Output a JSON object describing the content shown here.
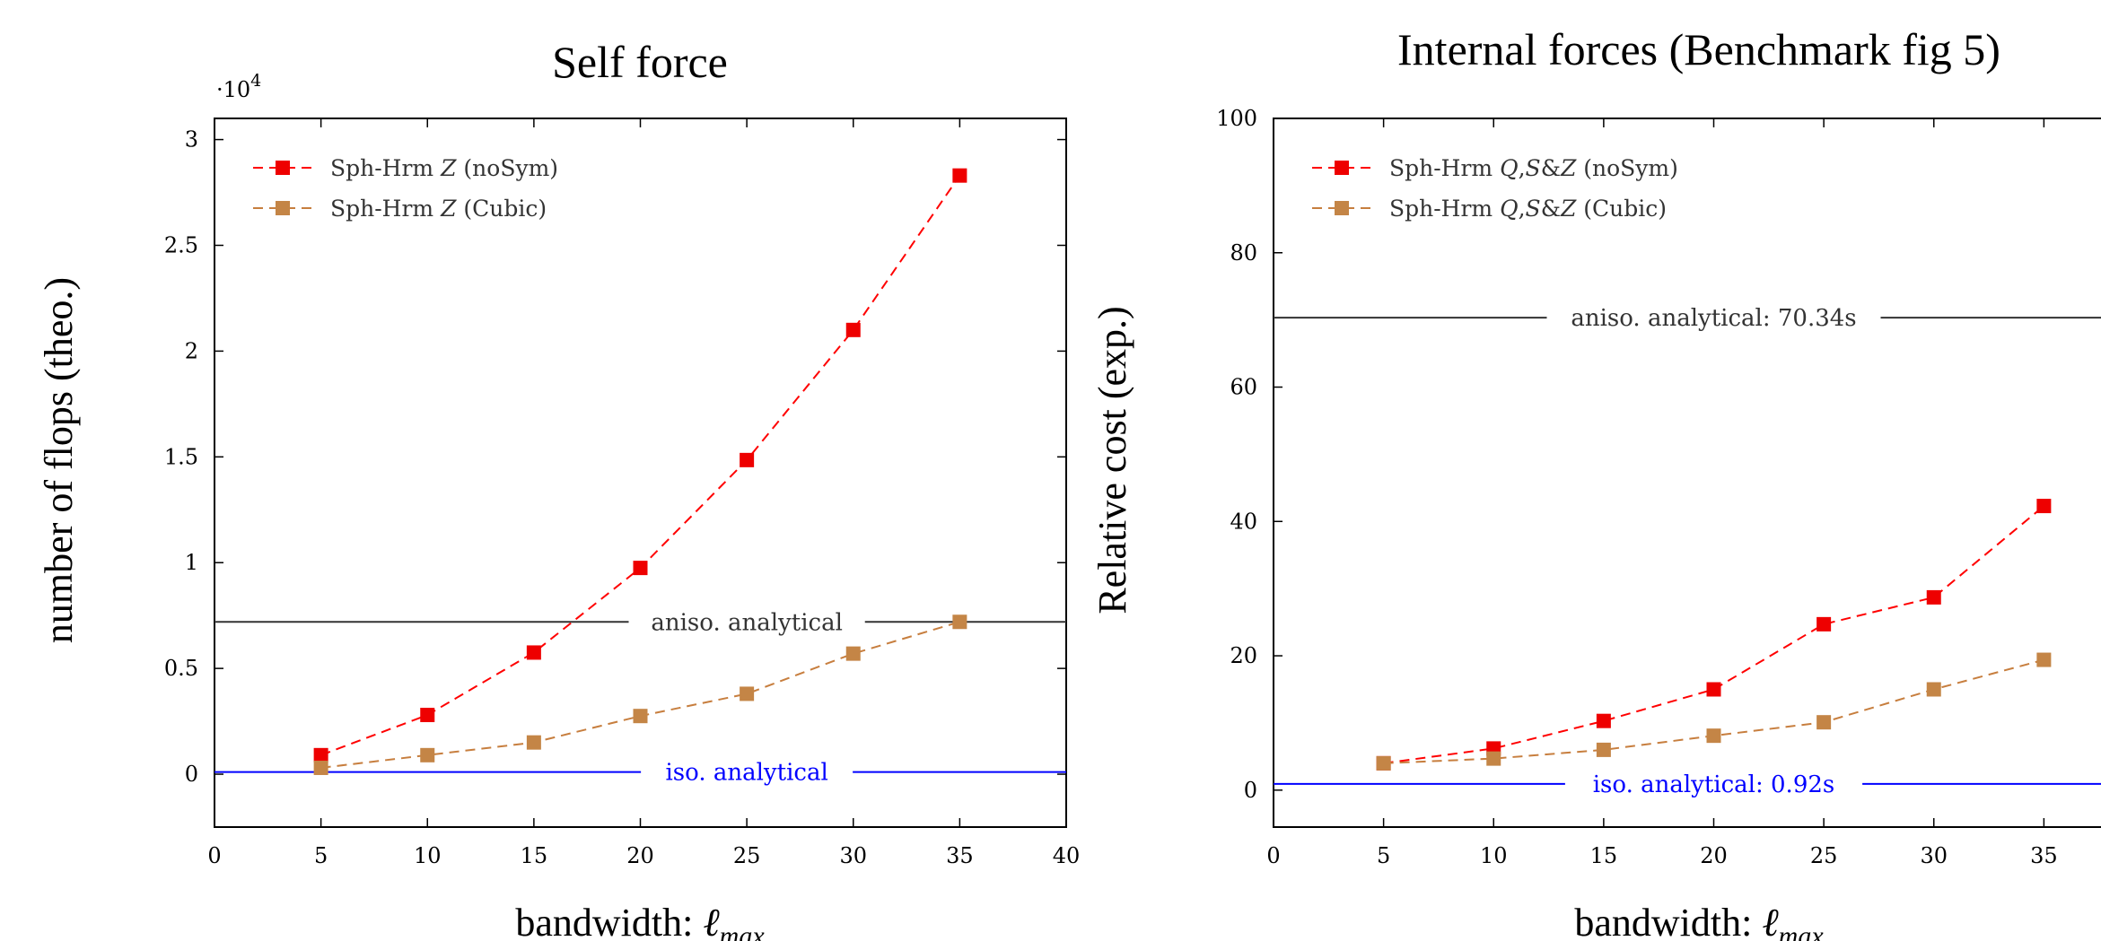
{
  "chart_data": [
    {
      "type": "line",
      "title": "Self force",
      "xlabel_text": "bandwidth: ",
      "xlabel_symbol": "ℓ",
      "xlabel_sub": "max",
      "ylabel": "number of flops (theo.)",
      "y_exponent_base": "·10",
      "y_exponent_power": "4",
      "xlim": [
        0,
        40
      ],
      "ylim": [
        -0.25,
        3.1
      ],
      "xticks": [
        0,
        5,
        10,
        15,
        20,
        25,
        30,
        35,
        40
      ],
      "yticks": [
        0,
        0.5,
        1,
        1.5,
        2,
        2.5,
        3
      ],
      "ytick_labels": [
        "0",
        "0.5",
        "1",
        "1.5",
        "2",
        "2.5",
        "3"
      ],
      "grid": false,
      "legend_position": "top-left",
      "series": [
        {
          "name_parts": [
            "Sph-Hrm ",
            "Z",
            " (noSym)"
          ],
          "color": "#ff0000",
          "marker_color": "#ee0000",
          "x": [
            5,
            10,
            15,
            20,
            25,
            30,
            35
          ],
          "y": [
            0.09,
            0.28,
            0.575,
            0.975,
            1.485,
            2.1,
            2.83
          ]
        },
        {
          "name_parts": [
            "Sph-Hrm ",
            "Z",
            " (Cubic)"
          ],
          "color": "#c77e3e",
          "marker_color": "#c48546",
          "x": [
            5,
            10,
            15,
            20,
            25,
            30,
            35
          ],
          "y": [
            0.03,
            0.09,
            0.15,
            0.275,
            0.38,
            0.57,
            0.72
          ]
        }
      ],
      "reference_lines": [
        {
          "label": "aniso. analytical",
          "y": 0.72,
          "color": "#333333",
          "label_color": "#333333",
          "label_x": 25
        },
        {
          "label": "iso. analytical",
          "y": 0.01,
          "color": "#0000ff",
          "label_color": "#0000ff",
          "label_x": 25
        }
      ]
    },
    {
      "type": "line",
      "title": "Internal forces (Benchmark fig 5)",
      "xlabel_text": "bandwidth: ",
      "xlabel_symbol": "ℓ",
      "xlabel_sub": "max",
      "ylabel": "Relative cost (exp.)",
      "xlim": [
        0,
        40
      ],
      "ylim": [
        -5.5,
        100
      ],
      "xticks": [
        0,
        5,
        10,
        15,
        20,
        25,
        30,
        35
      ],
      "yticks": [
        0,
        20,
        40,
        60,
        80,
        100
      ],
      "ytick_labels": [
        "0",
        "20",
        "40",
        "60",
        "80",
        "100"
      ],
      "grid": false,
      "legend_position": "top-left",
      "series": [
        {
          "name_parts": [
            "Sph-Hrm ",
            "Q",
            ",",
            "S",
            "&",
            "Z",
            " (noSym)"
          ],
          "color": "#ff0000",
          "marker_color": "#ee0000",
          "x": [
            5,
            10,
            15,
            20,
            25,
            30,
            35
          ],
          "y": [
            4.0,
            6.2,
            10.3,
            15.0,
            24.7,
            28.7,
            42.3
          ]
        },
        {
          "name_parts": [
            "Sph-Hrm ",
            "Q",
            ",",
            "S",
            "&",
            "Z",
            " (Cubic)"
          ],
          "color": "#c77e3e",
          "marker_color": "#c48546",
          "x": [
            5,
            10,
            15,
            20,
            25,
            30,
            35
          ],
          "y": [
            4.0,
            4.7,
            6.0,
            8.1,
            10.1,
            15.0,
            19.4
          ]
        }
      ],
      "reference_lines": [
        {
          "label": "aniso. analytical: 70.34s",
          "y": 70.34,
          "color": "#333333",
          "label_color": "#333333",
          "label_x": 20
        },
        {
          "label": "iso. analytical: 0.92s",
          "y": 0.92,
          "color": "#0000ff",
          "label_color": "#0000ff",
          "label_x": 20
        }
      ]
    }
  ]
}
